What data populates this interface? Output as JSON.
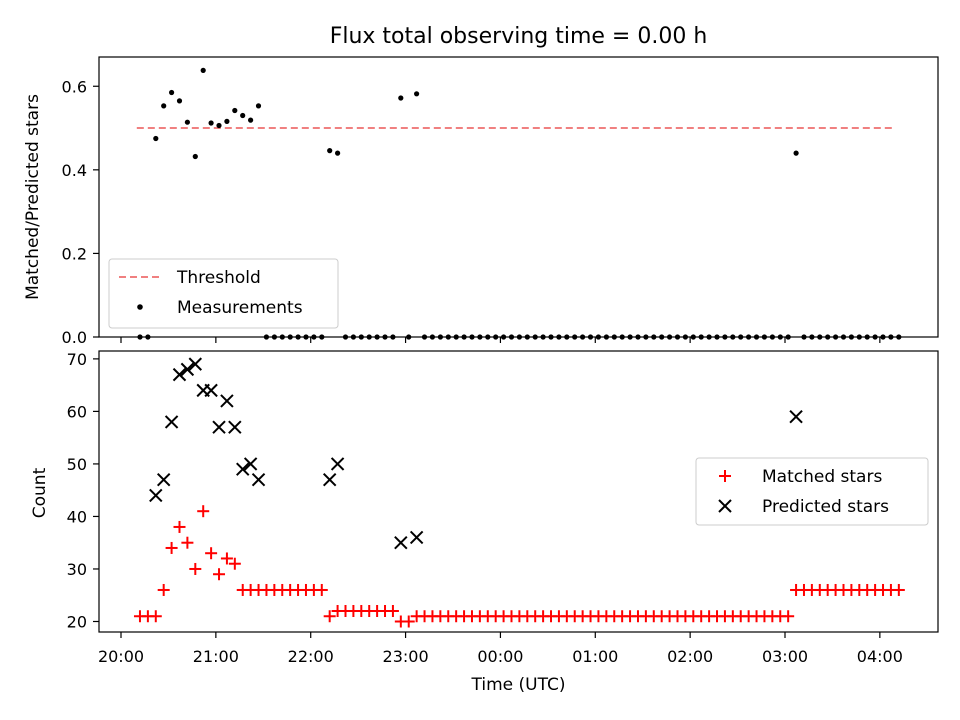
{
  "title": "Flux total observing time = 0.00 h",
  "chart_data": [
    {
      "type": "scatter",
      "panel": "top",
      "ylabel": "Matched/Predicted stars",
      "xlabel": "",
      "ylim": [
        0,
        0.67
      ],
      "yticks": [
        0.0,
        0.2,
        0.4,
        0.6
      ],
      "ytick_labels": [
        "0.0",
        "0.2",
        "0.4",
        "0.6"
      ],
      "legend_placement": "lower-left",
      "threshold": {
        "name": "Threshold",
        "value": 0.5,
        "x_start": "20:10",
        "x_end": "04:10",
        "color": "#f08080",
        "style": "dashed"
      },
      "series": [
        {
          "name": "Measurements",
          "color": "#000000",
          "marker": "dot",
          "points": [
            [
              "20:12",
              0.0
            ],
            [
              "20:17",
              0.0
            ],
            [
              "20:22",
              0.475
            ],
            [
              "20:27",
              0.553
            ],
            [
              "20:32",
              0.585
            ],
            [
              "20:37",
              0.565
            ],
            [
              "20:42",
              0.514
            ],
            [
              "20:47",
              0.432
            ],
            [
              "20:52",
              0.638
            ],
            [
              "20:57",
              0.512
            ],
            [
              "21:02",
              0.506
            ],
            [
              "21:07",
              0.516
            ],
            [
              "21:12",
              0.542
            ],
            [
              "21:17",
              0.53
            ],
            [
              "21:22",
              0.519
            ],
            [
              "21:27",
              0.553
            ],
            [
              "21:32",
              0.0
            ],
            [
              "21:37",
              0.0
            ],
            [
              "21:42",
              0.0
            ],
            [
              "21:47",
              0.0
            ],
            [
              "21:52",
              0.0
            ],
            [
              "21:57",
              0.0
            ],
            [
              "22:02",
              0.0
            ],
            [
              "22:07",
              0.0
            ],
            [
              "22:12",
              0.446
            ],
            [
              "22:17",
              0.44
            ],
            [
              "22:22",
              0.0
            ],
            [
              "22:27",
              0.0
            ],
            [
              "22:32",
              0.0
            ],
            [
              "22:37",
              0.0
            ],
            [
              "22:42",
              0.0
            ],
            [
              "22:47",
              0.0
            ],
            [
              "22:52",
              0.0
            ],
            [
              "22:57",
              0.572
            ],
            [
              "23:02",
              0.0
            ],
            [
              "23:07",
              0.582
            ],
            [
              "23:12",
              0.0
            ],
            [
              "23:17",
              0.0
            ],
            [
              "23:22",
              0.0
            ],
            [
              "23:27",
              0.0
            ],
            [
              "23:32",
              0.0
            ],
            [
              "23:37",
              0.0
            ],
            [
              "23:42",
              0.0
            ],
            [
              "23:47",
              0.0
            ],
            [
              "23:52",
              0.0
            ],
            [
              "23:57",
              0.0
            ],
            [
              "00:02",
              0.0
            ],
            [
              "00:07",
              0.0
            ],
            [
              "00:12",
              0.0
            ],
            [
              "00:17",
              0.0
            ],
            [
              "00:22",
              0.0
            ],
            [
              "00:27",
              0.0
            ],
            [
              "00:32",
              0.0
            ],
            [
              "00:37",
              0.0
            ],
            [
              "00:42",
              0.0
            ],
            [
              "00:47",
              0.0
            ],
            [
              "00:52",
              0.0
            ],
            [
              "00:57",
              0.0
            ],
            [
              "01:02",
              0.0
            ],
            [
              "01:07",
              0.0
            ],
            [
              "01:12",
              0.0
            ],
            [
              "01:17",
              0.0
            ],
            [
              "01:22",
              0.0
            ],
            [
              "01:27",
              0.0
            ],
            [
              "01:32",
              0.0
            ],
            [
              "01:37",
              0.0
            ],
            [
              "01:42",
              0.0
            ],
            [
              "01:47",
              0.0
            ],
            [
              "01:52",
              0.0
            ],
            [
              "01:57",
              0.0
            ],
            [
              "02:02",
              0.0
            ],
            [
              "02:07",
              0.0
            ],
            [
              "02:12",
              0.0
            ],
            [
              "02:17",
              0.0
            ],
            [
              "02:22",
              0.0
            ],
            [
              "02:27",
              0.0
            ],
            [
              "02:32",
              0.0
            ],
            [
              "02:37",
              0.0
            ],
            [
              "02:42",
              0.0
            ],
            [
              "02:47",
              0.0
            ],
            [
              "02:52",
              0.0
            ],
            [
              "02:57",
              0.0
            ],
            [
              "03:02",
              0.0
            ],
            [
              "03:07",
              0.44
            ],
            [
              "03:12",
              0.0
            ],
            [
              "03:17",
              0.0
            ],
            [
              "03:22",
              0.0
            ],
            [
              "03:27",
              0.0
            ],
            [
              "03:32",
              0.0
            ],
            [
              "03:37",
              0.0
            ],
            [
              "03:42",
              0.0
            ],
            [
              "03:47",
              0.0
            ],
            [
              "03:52",
              0.0
            ],
            [
              "03:57",
              0.0
            ],
            [
              "04:02",
              0.0
            ],
            [
              "04:07",
              0.0
            ],
            [
              "04:12",
              0.0
            ]
          ]
        }
      ],
      "legend": [
        "Threshold",
        "Measurements"
      ]
    },
    {
      "type": "scatter",
      "panel": "bottom",
      "ylabel": "Count",
      "xlabel": "Time (UTC)",
      "ylim": [
        18,
        71.5
      ],
      "yticks": [
        20,
        30,
        40,
        50,
        60,
        70
      ],
      "ytick_labels": [
        "20",
        "30",
        "40",
        "50",
        "60",
        "70"
      ],
      "xticks": [
        "20:00",
        "21:00",
        "22:00",
        "23:00",
        "00:00",
        "01:00",
        "02:00",
        "03:00",
        "04:00"
      ],
      "xlim": [
        "19:50",
        "04:35"
      ],
      "legend_placement": "center-right",
      "series": [
        {
          "name": "Matched stars",
          "color": "#ff0000",
          "marker": "plus",
          "points": [
            [
              "20:12",
              21
            ],
            [
              "20:17",
              21
            ],
            [
              "20:22",
              21
            ],
            [
              "20:27",
              26
            ],
            [
              "20:32",
              34
            ],
            [
              "20:37",
              38
            ],
            [
              "20:42",
              35
            ],
            [
              "20:47",
              30
            ],
            [
              "20:52",
              41
            ],
            [
              "20:57",
              33
            ],
            [
              "21:02",
              29
            ],
            [
              "21:07",
              32
            ],
            [
              "21:12",
              31
            ],
            [
              "21:17",
              26
            ],
            [
              "21:22",
              26
            ],
            [
              "21:27",
              26
            ],
            [
              "21:32",
              26
            ],
            [
              "21:37",
              26
            ],
            [
              "21:42",
              26
            ],
            [
              "21:47",
              26
            ],
            [
              "21:52",
              26
            ],
            [
              "21:57",
              26
            ],
            [
              "22:02",
              26
            ],
            [
              "22:07",
              26
            ],
            [
              "22:12",
              21
            ],
            [
              "22:17",
              22
            ],
            [
              "22:22",
              22
            ],
            [
              "22:27",
              22
            ],
            [
              "22:32",
              22
            ],
            [
              "22:37",
              22
            ],
            [
              "22:42",
              22
            ],
            [
              "22:47",
              22
            ],
            [
              "22:52",
              22
            ],
            [
              "22:57",
              20
            ],
            [
              "23:02",
              20
            ],
            [
              "23:07",
              21
            ],
            [
              "23:12",
              21
            ],
            [
              "23:17",
              21
            ],
            [
              "23:22",
              21
            ],
            [
              "23:27",
              21
            ],
            [
              "23:32",
              21
            ],
            [
              "23:37",
              21
            ],
            [
              "23:42",
              21
            ],
            [
              "23:47",
              21
            ],
            [
              "23:52",
              21
            ],
            [
              "23:57",
              21
            ],
            [
              "00:02",
              21
            ],
            [
              "00:07",
              21
            ],
            [
              "00:12",
              21
            ],
            [
              "00:17",
              21
            ],
            [
              "00:22",
              21
            ],
            [
              "00:27",
              21
            ],
            [
              "00:32",
              21
            ],
            [
              "00:37",
              21
            ],
            [
              "00:42",
              21
            ],
            [
              "00:47",
              21
            ],
            [
              "00:52",
              21
            ],
            [
              "00:57",
              21
            ],
            [
              "01:02",
              21
            ],
            [
              "01:07",
              21
            ],
            [
              "01:12",
              21
            ],
            [
              "01:17",
              21
            ],
            [
              "01:22",
              21
            ],
            [
              "01:27",
              21
            ],
            [
              "01:32",
              21
            ],
            [
              "01:37",
              21
            ],
            [
              "01:42",
              21
            ],
            [
              "01:47",
              21
            ],
            [
              "01:52",
              21
            ],
            [
              "01:57",
              21
            ],
            [
              "02:02",
              21
            ],
            [
              "02:07",
              21
            ],
            [
              "02:12",
              21
            ],
            [
              "02:17",
              21
            ],
            [
              "02:22",
              21
            ],
            [
              "02:27",
              21
            ],
            [
              "02:32",
              21
            ],
            [
              "02:37",
              21
            ],
            [
              "02:42",
              21
            ],
            [
              "02:47",
              21
            ],
            [
              "02:52",
              21
            ],
            [
              "02:57",
              21
            ],
            [
              "03:02",
              21
            ],
            [
              "03:07",
              26
            ],
            [
              "03:12",
              26
            ],
            [
              "03:17",
              26
            ],
            [
              "03:22",
              26
            ],
            [
              "03:27",
              26
            ],
            [
              "03:32",
              26
            ],
            [
              "03:37",
              26
            ],
            [
              "03:42",
              26
            ],
            [
              "03:47",
              26
            ],
            [
              "03:52",
              26
            ],
            [
              "03:57",
              26
            ],
            [
              "04:02",
              26
            ],
            [
              "04:07",
              26
            ],
            [
              "04:12",
              26
            ]
          ]
        },
        {
          "name": "Predicted stars",
          "color": "#000000",
          "marker": "x",
          "points": [
            [
              "20:22",
              44
            ],
            [
              "20:27",
              47
            ],
            [
              "20:32",
              58
            ],
            [
              "20:37",
              67
            ],
            [
              "20:42",
              68
            ],
            [
              "20:47",
              69
            ],
            [
              "20:52",
              64
            ],
            [
              "20:57",
              64
            ],
            [
              "21:02",
              57
            ],
            [
              "21:07",
              62
            ],
            [
              "21:12",
              57
            ],
            [
              "21:17",
              49
            ],
            [
              "21:22",
              50
            ],
            [
              "21:27",
              47
            ],
            [
              "22:12",
              47
            ],
            [
              "22:17",
              50
            ],
            [
              "22:57",
              35
            ],
            [
              "23:07",
              36
            ],
            [
              "03:07",
              59
            ]
          ]
        }
      ],
      "legend": [
        "Matched stars",
        "Predicted stars"
      ]
    }
  ]
}
